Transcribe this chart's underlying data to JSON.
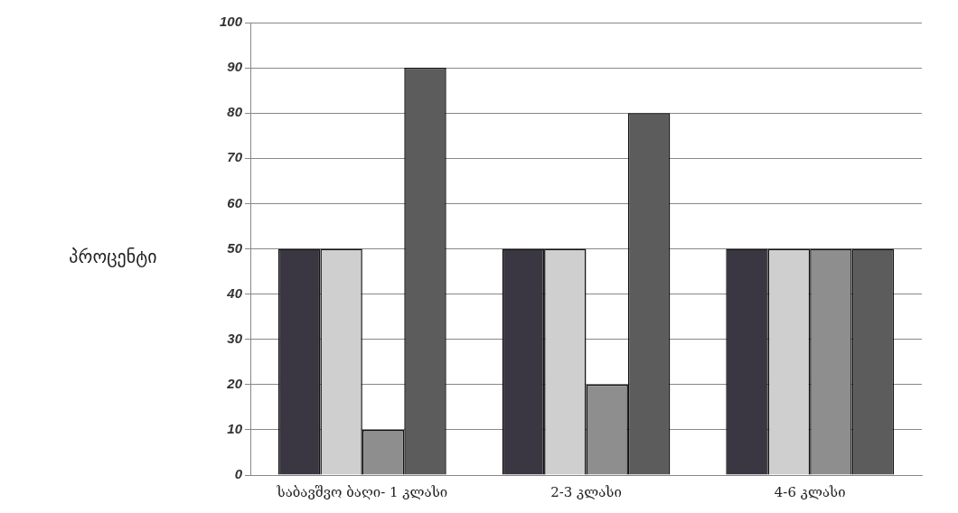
{
  "chart_data": {
    "type": "bar",
    "ylabel": "პროცენტი",
    "categories": [
      "საბავშვო ბაღი- 1 კლასი",
      "2-3 კლასი",
      "4-6 კლასი"
    ],
    "series": [
      {
        "color": "#3b3742",
        "values": [
          50,
          50,
          50
        ]
      },
      {
        "color": "#cfcfcf",
        "values": [
          50,
          50,
          50
        ]
      },
      {
        "color": "#8e8e8e",
        "values": [
          10,
          20,
          50
        ]
      },
      {
        "color": "#5c5c5c",
        "values": [
          90,
          80,
          50
        ]
      }
    ],
    "ylim": [
      0,
      100
    ],
    "yticks": [
      0,
      10,
      20,
      30,
      40,
      50,
      60,
      70,
      80,
      90,
      100
    ],
    "grid": "y"
  }
}
